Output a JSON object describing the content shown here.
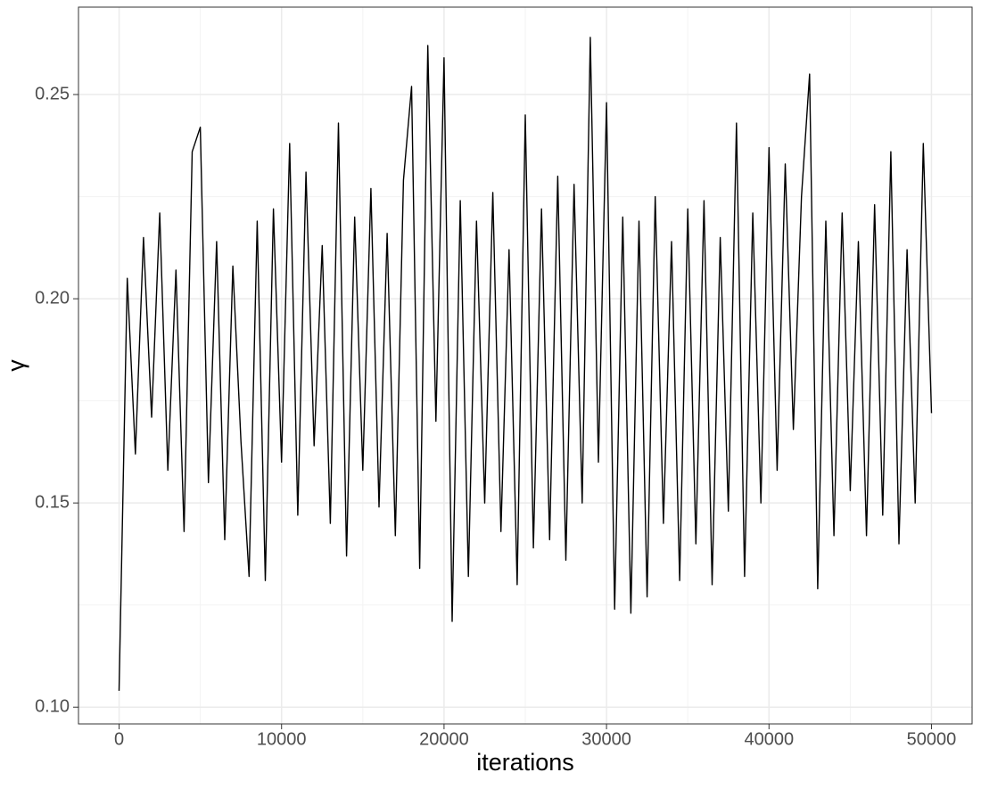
{
  "chart_data": {
    "type": "line",
    "x_label": "iterations",
    "y_label": "γ",
    "x": [
      0,
      500,
      1000,
      1500,
      2000,
      2500,
      3000,
      3500,
      4000,
      4500,
      5000,
      5500,
      6000,
      6500,
      7000,
      7500,
      8000,
      8500,
      9000,
      9500,
      10000,
      10500,
      11000,
      11500,
      12000,
      12500,
      13000,
      13500,
      14000,
      14500,
      15000,
      15500,
      16000,
      16500,
      17000,
      17500,
      18000,
      18500,
      19000,
      19500,
      20000,
      20500,
      21000,
      21500,
      22000,
      22500,
      23000,
      23500,
      24000,
      24500,
      25000,
      25500,
      26000,
      26500,
      27000,
      27500,
      28000,
      28500,
      29000,
      29500,
      30000,
      30500,
      31000,
      31500,
      32000,
      32500,
      33000,
      33500,
      34000,
      34500,
      35000,
      35500,
      36000,
      36500,
      37000,
      37500,
      38000,
      38500,
      39000,
      39500,
      40000,
      40500,
      41000,
      41500,
      42000,
      42500,
      43000,
      43500,
      44000,
      44500,
      45000,
      45500,
      46000,
      46500,
      47000,
      47500,
      48000,
      48500,
      49000,
      49500,
      50000
    ],
    "series": [
      {
        "name": "γ",
        "color": "#000000",
        "values": [
          0.104,
          0.205,
          0.162,
          0.215,
          0.171,
          0.221,
          0.158,
          0.207,
          0.143,
          0.236,
          0.242,
          0.155,
          0.214,
          0.141,
          0.208,
          0.165,
          0.132,
          0.219,
          0.131,
          0.222,
          0.16,
          0.238,
          0.147,
          0.231,
          0.164,
          0.213,
          0.145,
          0.243,
          0.137,
          0.22,
          0.158,
          0.227,
          0.149,
          0.216,
          0.142,
          0.229,
          0.252,
          0.134,
          0.262,
          0.17,
          0.259,
          0.121,
          0.224,
          0.132,
          0.219,
          0.15,
          0.226,
          0.143,
          0.212,
          0.13,
          0.245,
          0.139,
          0.222,
          0.141,
          0.23,
          0.136,
          0.228,
          0.15,
          0.264,
          0.16,
          0.248,
          0.124,
          0.22,
          0.123,
          0.219,
          0.127,
          0.225,
          0.145,
          0.214,
          0.131,
          0.222,
          0.14,
          0.224,
          0.13,
          0.215,
          0.148,
          0.243,
          0.132,
          0.221,
          0.15,
          0.237,
          0.158,
          0.233,
          0.168,
          0.225,
          0.255,
          0.129,
          0.219,
          0.142,
          0.221,
          0.153,
          0.214,
          0.142,
          0.223,
          0.147,
          0.236,
          0.14,
          0.212,
          0.15,
          0.238,
          0.172
        ]
      }
    ],
    "xlim": [
      -2500,
      52500
    ],
    "ylim": [
      0.0959,
      0.2714
    ],
    "xticks": [
      0,
      10000,
      20000,
      30000,
      40000,
      50000
    ],
    "yticks": [
      {
        "value": 0.1,
        "label": "0.10"
      },
      0.15,
      {
        "value": 0.2,
        "label": "0.20"
      },
      0.25
    ],
    "xticks_minor": [
      5000,
      15000,
      25000,
      35000,
      45000
    ],
    "yticks_minor": [
      0.125,
      0.175,
      0.225
    ],
    "grid": true
  }
}
